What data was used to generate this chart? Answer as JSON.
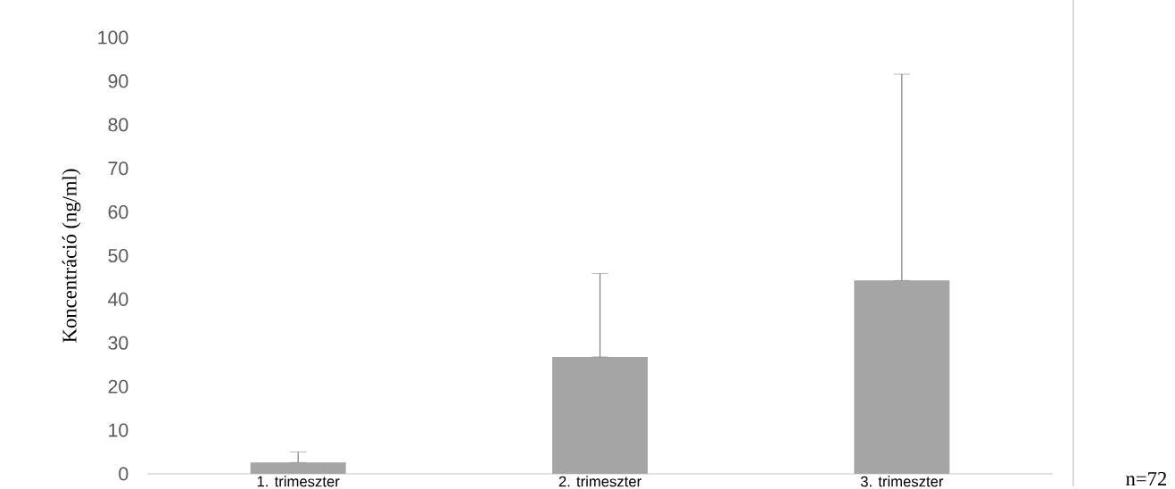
{
  "chart_data": {
    "type": "bar",
    "ylabel": "Koncentráció (ng/ml)",
    "categories": [
      "1. trimeszter",
      "2. trimeszter",
      "3. trimeszter"
    ],
    "values": [
      2.6,
      26.8,
      44.3
    ],
    "errors": [
      [
        2.6,
        5.0
      ],
      [
        26.8,
        45.9
      ],
      [
        44.3,
        91.6
      ]
    ],
    "color": "#a5a5a5",
    "ylim": [
      0,
      100
    ],
    "yticks": [
      0,
      10,
      20,
      30,
      40,
      50,
      60,
      70,
      80,
      90,
      100
    ],
    "annotations": [
      "n=72"
    ]
  }
}
